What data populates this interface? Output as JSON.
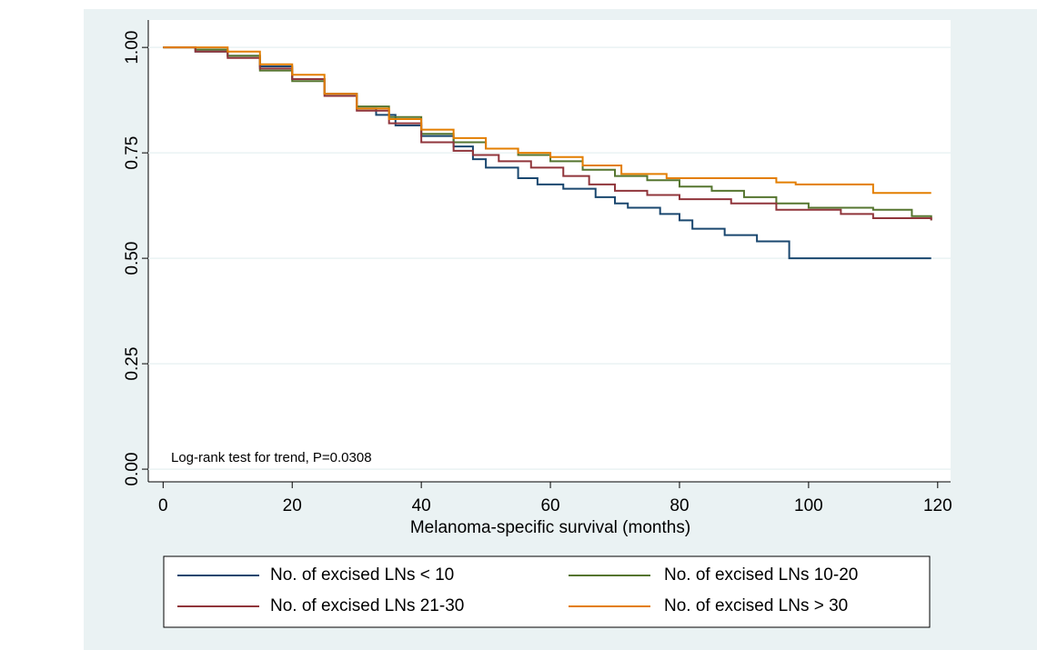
{
  "chart_data": {
    "type": "step",
    "xlabel": "Melanoma-specific survival (months)",
    "annotation": "Log-rank test for trend, P=0.0308",
    "xlim": [
      -2.3,
      122
    ],
    "ylim": [
      -0.03,
      1.065
    ],
    "xticks": [
      0,
      20,
      40,
      60,
      80,
      100,
      120
    ],
    "yticks": [
      {
        "value": 0,
        "label": "0.00"
      },
      {
        "value": 0.25,
        "label": "0.25"
      },
      {
        "value": 0.5,
        "label": "0.50"
      },
      {
        "value": 0.75,
        "label": "0.75"
      },
      {
        "value": 1,
        "label": "1.00"
      }
    ],
    "grid": true,
    "series": [
      {
        "name": "No. of excised LNs < 10",
        "color": "#1a476f",
        "x": [
          0,
          5,
          10,
          15,
          20,
          25,
          30,
          33,
          36,
          40,
          45,
          48,
          50,
          55,
          58,
          62,
          67,
          70,
          72,
          77,
          80,
          82,
          87,
          92,
          97,
          119
        ],
        "values": [
          1,
          0.99,
          0.98,
          0.955,
          0.925,
          0.89,
          0.855,
          0.84,
          0.815,
          0.79,
          0.765,
          0.735,
          0.715,
          0.69,
          0.675,
          0.665,
          0.645,
          0.63,
          0.62,
          0.605,
          0.59,
          0.57,
          0.555,
          0.54,
          0.5,
          0.5
        ]
      },
      {
        "name": "No. of excised LNs 10-20",
        "color": "#55752f",
        "x": [
          0,
          5,
          10,
          15,
          20,
          25,
          30,
          35,
          40,
          45,
          50,
          55,
          60,
          65,
          70,
          75,
          80,
          85,
          90,
          95,
          100,
          110,
          116,
          119
        ],
        "values": [
          1,
          0.995,
          0.98,
          0.945,
          0.92,
          0.89,
          0.86,
          0.835,
          0.795,
          0.775,
          0.76,
          0.745,
          0.73,
          0.71,
          0.695,
          0.685,
          0.67,
          0.66,
          0.645,
          0.63,
          0.62,
          0.615,
          0.6,
          0.59
        ]
      },
      {
        "name": "No. of excised LNs 21-30",
        "color": "#90353b",
        "x": [
          0,
          5,
          10,
          15,
          20,
          25,
          30,
          35,
          40,
          45,
          48,
          52,
          57,
          62,
          66,
          70,
          75,
          80,
          88,
          95,
          105,
          110,
          119
        ],
        "values": [
          1,
          0.99,
          0.975,
          0.95,
          0.925,
          0.885,
          0.85,
          0.82,
          0.775,
          0.755,
          0.745,
          0.73,
          0.715,
          0.695,
          0.675,
          0.66,
          0.65,
          0.64,
          0.63,
          0.615,
          0.605,
          0.595,
          0.59
        ]
      },
      {
        "name": "No. of excised LNs > 30",
        "color": "#e37e00",
        "x": [
          0,
          10,
          15,
          20,
          25,
          30,
          35,
          40,
          45,
          50,
          55,
          60,
          65,
          71,
          78,
          95,
          98,
          110,
          119
        ],
        "values": [
          1,
          0.99,
          0.96,
          0.935,
          0.89,
          0.855,
          0.83,
          0.805,
          0.785,
          0.76,
          0.75,
          0.74,
          0.72,
          0.7,
          0.69,
          0.68,
          0.675,
          0.655,
          0.655
        ]
      }
    ]
  }
}
